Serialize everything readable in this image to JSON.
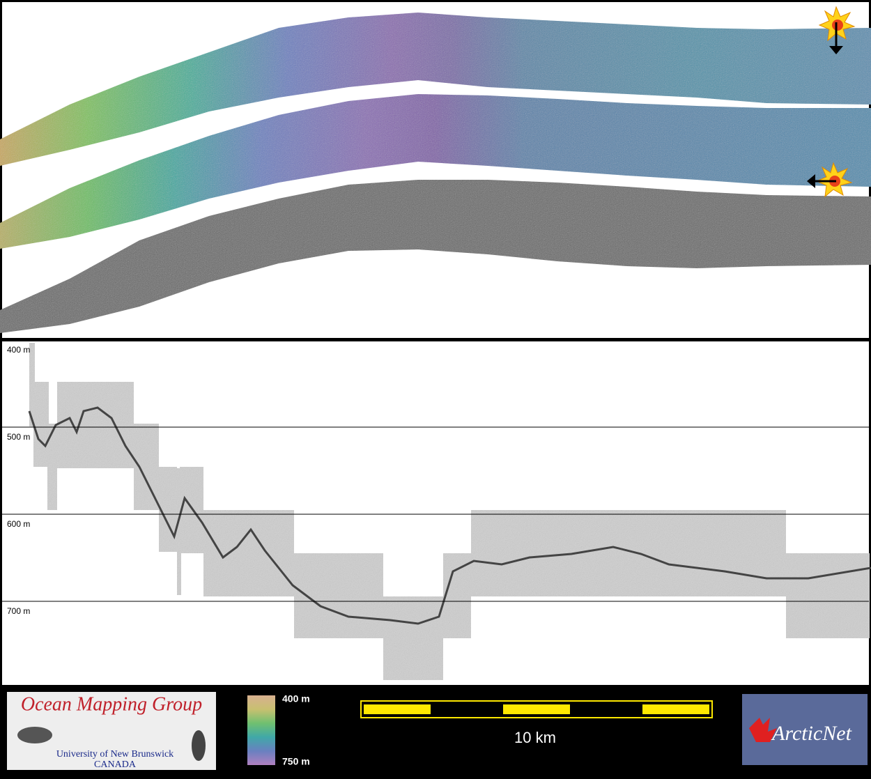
{
  "profile": {
    "depth_labels": [
      "400 m",
      "500 m",
      "600 m",
      "700 m"
    ]
  },
  "footer": {
    "logo": {
      "title": "Ocean Mapping Group",
      "subtitle": "University of New Brunswick",
      "country": "CANADA"
    },
    "colorbar": {
      "top": "400 m",
      "bottom": "750 m"
    },
    "scale_bar": "10 km",
    "partner": "ArcticNet"
  }
}
